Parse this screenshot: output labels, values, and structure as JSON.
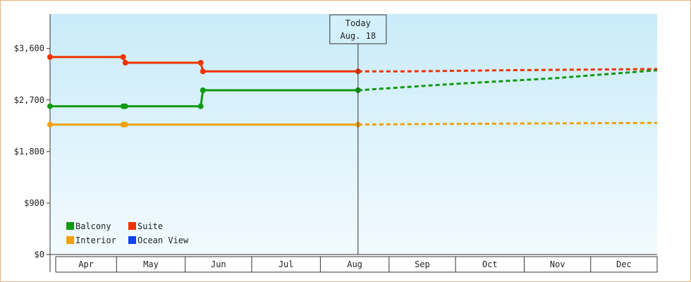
{
  "chart_data": {
    "type": "line",
    "title": "",
    "xlabel": "",
    "ylabel": "",
    "ylim": [
      0,
      4200
    ],
    "y_ticks": [
      0,
      900,
      1800,
      2700,
      3600
    ],
    "y_tick_labels": [
      "$0",
      "$900",
      "$1,800",
      "$2,700",
      "$3,600"
    ],
    "x_range": [
      "2024-04-01",
      "2024-12-31"
    ],
    "x_tick_labels": [
      "Apr",
      "May",
      "Jun",
      "Jul",
      "Aug",
      "Sep",
      "Oct",
      "Nov",
      "Dec"
    ],
    "today": {
      "label": "Today",
      "date_label": "Aug. 18",
      "date": "2024-08-18"
    },
    "colors": {
      "Balcony": "#119911",
      "Suite": "#ee3300",
      "Interior": "#f0a010",
      "Ocean View": "#1144ee"
    },
    "legend": {
      "position": "bottom-left",
      "items": [
        "Balcony",
        "Suite",
        "Interior",
        "Ocean View"
      ]
    },
    "grid": false,
    "series": [
      {
        "name": "Balcony",
        "actual": [
          [
            "2024-04-01",
            2590
          ],
          [
            "2024-05-04",
            2590
          ],
          [
            "2024-05-05",
            2590
          ],
          [
            "2024-06-08",
            2590
          ],
          [
            "2024-06-09",
            2870
          ],
          [
            "2024-08-18",
            2870
          ]
        ],
        "forecast": [
          [
            "2024-08-18",
            2870
          ],
          [
            "2024-09-30",
            2980
          ],
          [
            "2024-11-15",
            3080
          ],
          [
            "2024-12-31",
            3220
          ]
        ]
      },
      {
        "name": "Suite",
        "actual": [
          [
            "2024-04-01",
            3450
          ],
          [
            "2024-05-04",
            3450
          ],
          [
            "2024-05-05",
            3350
          ],
          [
            "2024-06-08",
            3350
          ],
          [
            "2024-06-09",
            3200
          ],
          [
            "2024-08-18",
            3200
          ]
        ],
        "forecast": [
          [
            "2024-08-18",
            3200
          ],
          [
            "2024-09-10",
            3200
          ],
          [
            "2024-10-25",
            3220
          ],
          [
            "2024-12-31",
            3240
          ]
        ]
      },
      {
        "name": "Interior",
        "actual": [
          [
            "2024-04-01",
            2270
          ],
          [
            "2024-05-04",
            2270
          ],
          [
            "2024-05-05",
            2270
          ],
          [
            "2024-08-18",
            2270
          ]
        ],
        "forecast": [
          [
            "2024-08-18",
            2270
          ],
          [
            "2024-09-20",
            2280
          ],
          [
            "2024-11-05",
            2290
          ],
          [
            "2024-12-31",
            2300
          ]
        ]
      },
      {
        "name": "Ocean View",
        "actual": [],
        "forecast": []
      }
    ]
  }
}
